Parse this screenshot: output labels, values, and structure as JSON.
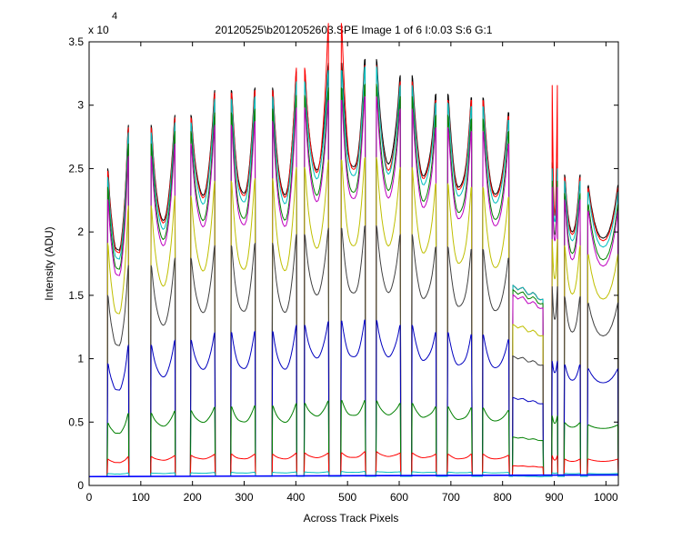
{
  "chart_data": {
    "type": "line",
    "title": "20120525\\b2012052603.SPE  Image 1 of 6  I:0.03  S:6  G:1",
    "xlabel": "Across Track Pixels",
    "ylabel": "Intensity (ADU)",
    "y_multiplier_label": "x 10",
    "y_multiplier_exponent": "4",
    "xlim": [
      0,
      1024
    ],
    "ylim": [
      0,
      3.5
    ],
    "y_scale": 10000,
    "xticks": [
      0,
      100,
      200,
      300,
      400,
      500,
      600,
      700,
      800,
      900,
      1000
    ],
    "yticks": [
      0,
      0.5,
      1,
      1.5,
      2,
      2.5,
      3,
      3.5
    ],
    "grid": false,
    "baseline": 720,
    "slits": {
      "starts": [
        36,
        120,
        197,
        275,
        355,
        417,
        488,
        556,
        625,
        694,
        762
      ],
      "widths": [
        40,
        46,
        46,
        46,
        46,
        46,
        46,
        46,
        46,
        46,
        50
      ]
    },
    "special_segment": {
      "x": [
        820,
        878
      ],
      "levels": [
        15800,
        14500
      ]
    },
    "series": [
      {
        "color": "#000000",
        "peaks": [
          25500,
          29000,
          29800,
          31800,
          32000,
          33300,
          34000,
          34300,
          33000,
          31500,
          31200,
          30000,
          29500,
          26000,
          25000,
          24000
        ],
        "valleys": [
          18500,
          21000,
          23000,
          23000,
          23000,
          25000,
          25000,
          25500,
          24500,
          23500,
          23000,
          21500,
          21500,
          21500,
          20000,
          19500
        ]
      },
      {
        "color": "#ff0000",
        "peaks": [
          25300,
          28800,
          29600,
          31600,
          31800,
          33600,
          37200,
          33800,
          32500,
          31000,
          31000,
          29700,
          29300,
          32200,
          24800,
          23800
        ],
        "valleys": [
          18300,
          20800,
          22800,
          22800,
          22800,
          24800,
          24800,
          25000,
          24300,
          23300,
          22800,
          21300,
          21300,
          21300,
          19800,
          19300
        ]
      },
      {
        "color": "#00bfbf",
        "peaks": [
          24800,
          28400,
          29200,
          31100,
          31300,
          32500,
          33400,
          33700,
          32200,
          30800,
          30500,
          29400,
          28900,
          25500,
          24500,
          23500
        ],
        "valleys": [
          17800,
          20300,
          22300,
          22300,
          22300,
          24300,
          24300,
          24700,
          23800,
          22800,
          22300,
          20800,
          20800,
          20800,
          19300,
          18800
        ]
      },
      {
        "color": "#008000",
        "peaks": [
          24000,
          27500,
          28500,
          30000,
          30300,
          31400,
          32000,
          32300,
          31300,
          29800,
          29500,
          28500,
          28000,
          24500,
          23500,
          22500
        ],
        "valleys": [
          17000,
          19500,
          21000,
          21000,
          21000,
          23000,
          23000,
          23400,
          22500,
          21500,
          21000,
          19800,
          19800,
          19800,
          18300,
          17800
        ]
      },
      {
        "color": "#bf00bf",
        "peaks": [
          23000,
          26500,
          27500,
          29000,
          29300,
          30400,
          31000,
          31300,
          30300,
          28800,
          28500,
          27500,
          27000,
          24000,
          23000,
          22000
        ],
        "valleys": [
          16500,
          19000,
          20500,
          20500,
          20500,
          22500,
          22500,
          22800,
          22000,
          21000,
          20500,
          19300,
          19300,
          19300,
          17800,
          17300
        ]
      },
      {
        "color": "#bfbf00",
        "peaks": [
          19500,
          22500,
          23300,
          24500,
          24700,
          25600,
          26200,
          26400,
          25600,
          24300,
          24000,
          23200,
          22800,
          19800,
          19300,
          18500
        ],
        "valleys": [
          13500,
          15800,
          17000,
          17000,
          17000,
          18800,
          18800,
          19000,
          18400,
          17500,
          17200,
          16300,
          16300,
          16300,
          15100,
          14700
        ]
      },
      {
        "color": "#404040",
        "peaks": [
          15300,
          17700,
          18300,
          19300,
          19500,
          20200,
          20700,
          20900,
          20200,
          19200,
          19000,
          18300,
          18000,
          16000,
          15200,
          14600
        ],
        "valleys": [
          11000,
          12700,
          13700,
          13700,
          13700,
          15100,
          15100,
          15300,
          14800,
          14100,
          13800,
          13100,
          13100,
          13100,
          12100,
          11800
        ]
      },
      {
        "color": "#0000bf",
        "peaks": [
          9800,
          11300,
          11700,
          12300,
          12400,
          12900,
          13200,
          13300,
          12900,
          12300,
          12100,
          11700,
          11500,
          10000,
          9700,
          9300
        ],
        "valleys": [
          7500,
          8600,
          9200,
          9200,
          9200,
          10100,
          10100,
          10200,
          9900,
          9500,
          9300,
          8900,
          8900,
          8900,
          8300,
          8100
        ]
      },
      {
        "color": "#008000",
        "peaks": [
          5000,
          5800,
          6000,
          6300,
          6400,
          6600,
          6800,
          6800,
          6600,
          6300,
          6200,
          6000,
          5900,
          5600,
          5000,
          4800
        ],
        "valleys": [
          4100,
          4700,
          5000,
          5000,
          5000,
          5500,
          5500,
          5600,
          5400,
          5200,
          5100,
          4900,
          4900,
          4900,
          4600,
          4500
        ]
      },
      {
        "color": "#ff0000",
        "peaks": [
          2100,
          2300,
          2400,
          2500,
          2500,
          2600,
          2600,
          2700,
          2600,
          2500,
          2500,
          2400,
          2400,
          2400,
          2100,
          2100
        ],
        "valleys": [
          1800,
          2000,
          2100,
          2100,
          2100,
          2200,
          2200,
          2300,
          2200,
          2100,
          2100,
          2000,
          2000,
          2000,
          1900,
          1900
        ]
      },
      {
        "color": "#00bfbf",
        "peaks": [
          950,
          990,
          1010,
          1040,
          1050,
          1080,
          1100,
          1110,
          1090,
          1060,
          1050,
          1030,
          1020,
          1020,
          960,
          950
        ],
        "valleys": [
          900,
          940,
          960,
          980,
          990,
          1010,
          1030,
          1040,
          1020,
          1000,
          990,
          970,
          960,
          960,
          920,
          910
        ]
      },
      {
        "color": "#0000ff",
        "flat": [
          700,
          830
        ]
      }
    ]
  }
}
